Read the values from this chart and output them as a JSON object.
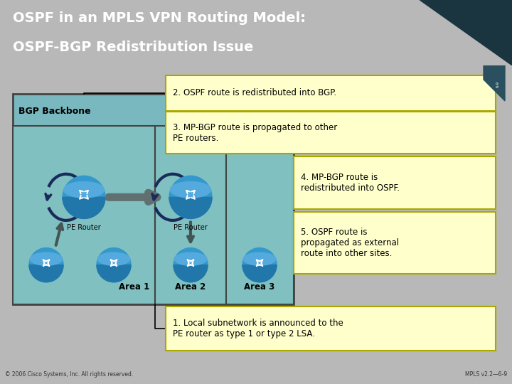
{
  "title_line1": "OSPF in an MPLS VPN Routing Model:",
  "title_line2": "OSPF-BGP Redistribution Issue",
  "title_bg": "#3d7a8a",
  "title_color": "#ffffff",
  "body_bg": "#b8b8b8",
  "footer_bg": "#999999",
  "footer_left": "© 2006 Cisco Systems, Inc. All rights reserved.",
  "footer_right": "MPLS v2.2—6-9",
  "callout_bg": "#ffffcc",
  "callout_border": "#aaa800",
  "bgp_box_color": "#7ab8c0",
  "area_color": "#80c0c0",
  "arrow_gray": "#607070",
  "dark_navy": "#1a2a5a",
  "router_blue": "#3399cc",
  "router_dark": "#1166aa",
  "router_top": "#55aadd"
}
